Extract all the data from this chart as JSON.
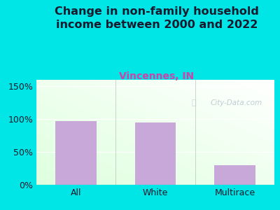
{
  "categories": [
    "All",
    "White",
    "Multirace"
  ],
  "values": [
    97,
    95,
    30
  ],
  "bar_color": "#c8a8d8",
  "title": "Change in non-family household\nincome between 2000 and 2022",
  "subtitle": "Vincennes, IN",
  "title_color": "#1a1a2e",
  "subtitle_color": "#cc44aa",
  "bg_color": "#00e5e5",
  "yticks": [
    0,
    50,
    100,
    150
  ],
  "ytick_labels": [
    "0%",
    "50%",
    "100%",
    "150%"
  ],
  "ylim": [
    0,
    160
  ],
  "title_fontsize": 11.5,
  "subtitle_fontsize": 10,
  "tick_fontsize": 9,
  "watermark": "City-Data.com",
  "watermark_color": "#b8c4cc",
  "separator_color": "#aaaaaa",
  "plot_grad_left": "#dff5df",
  "plot_grad_right": "#f8fff8"
}
